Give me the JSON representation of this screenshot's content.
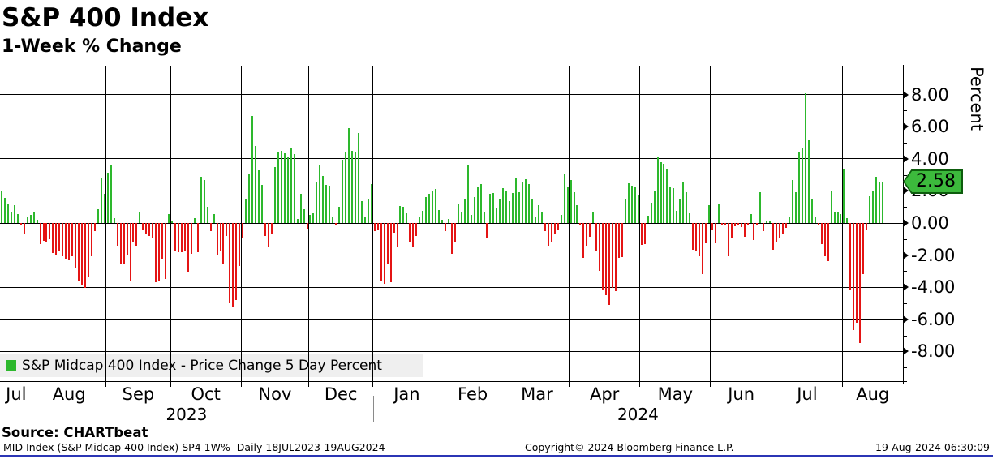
{
  "header": {
    "title": "S&P 400 Index",
    "subtitle": "1-Week % Change"
  },
  "chart_data": {
    "type": "bar",
    "title": "S&P 400 Index",
    "subtitle": "1-Week % Change",
    "ylabel": "Percent",
    "xlabel": "",
    "ylim": [
      -9.8,
      9.75
    ],
    "grid": true,
    "y_major_ticks": [
      8,
      6,
      4,
      2,
      0,
      -2,
      -4,
      -6,
      -8
    ],
    "y_tick_labels": [
      "8.00",
      "6.00",
      "4.00",
      "2.00",
      "0.00",
      "-2.00",
      "-4.00",
      "-6.00",
      "-8.00"
    ],
    "last_value_label": "2.58",
    "legend_position": "bottom-left",
    "series_name": "S&P Midcap 400 Index - Price Change 5 Day Percent",
    "months": [
      {
        "label": "Jul",
        "year": "2023",
        "days": 10,
        "values": [
          2.0,
          1.56,
          1.14,
          0.64,
          1.09,
          0.55,
          -0.15,
          -0.7,
          0.39,
          0.5
        ]
      },
      {
        "label": "Aug",
        "year": "2023",
        "days": 23,
        "values": [
          0.72,
          0.2,
          -1.3,
          -1.13,
          -1.2,
          -1.0,
          -1.88,
          -1.96,
          -1.7,
          -2.08,
          -2.2,
          -2.3,
          -2.08,
          -2.8,
          -3.64,
          -3.86,
          -4.06,
          -3.4,
          -2.08,
          -0.5,
          0.84,
          2.8,
          1.81
        ]
      },
      {
        "label": "Sep",
        "year": "2023",
        "days": 20,
        "values": [
          3.14,
          3.6,
          0.3,
          -1.4,
          -2.6,
          -2.5,
          -2.0,
          -3.6,
          -1.2,
          -1.4,
          0.7,
          -0.4,
          -0.7,
          -0.8,
          -0.9,
          -3.7,
          -3.6,
          -2.2,
          -3.5,
          0.55
        ]
      },
      {
        "label": "Oct",
        "year": "2023",
        "days": 22,
        "values": [
          0.15,
          -1.7,
          -1.8,
          -1.8,
          -1.7,
          -3.1,
          -1.9,
          0.3,
          -1.8,
          2.9,
          2.7,
          1.0,
          -0.5,
          0.55,
          -2.0,
          -1.7,
          -2.5,
          -0.8,
          -5.0,
          -5.2,
          -4.8,
          -2.7
        ]
      },
      {
        "label": "Nov",
        "year": "2023",
        "days": 21,
        "values": [
          -0.95,
          1.54,
          3.1,
          6.68,
          4.8,
          3.3,
          2.35,
          -0.8,
          -1.5,
          -0.65,
          3.5,
          4.45,
          4.5,
          4.35,
          4.1,
          4.7,
          4.3,
          0.25,
          1.8,
          0.87,
          -0.37
        ]
      },
      {
        "label": "Dec",
        "year": "2023",
        "days": 20,
        "values": [
          0.5,
          0.62,
          2.6,
          3.6,
          2.94,
          2.35,
          2.3,
          0.37,
          -0.13,
          1.0,
          3.95,
          4.37,
          5.9,
          4.5,
          4.37,
          5.6,
          1.34,
          0.33,
          1.54,
          2.43
        ]
      },
      {
        "label": "Jan",
        "year": "2024",
        "days": 21,
        "values": [
          -0.5,
          -0.45,
          -3.6,
          -3.8,
          -2.5,
          -3.7,
          -0.6,
          -1.5,
          1.05,
          1.0,
          0.6,
          -1.2,
          -1.5,
          -0.8,
          0.4,
          0.75,
          1.6,
          1.8,
          2.0,
          2.1,
          0.8
        ]
      },
      {
        "label": "Feb",
        "year": "2024",
        "days": 20,
        "values": [
          0.2,
          -0.5,
          0.25,
          -1.93,
          -1.17,
          1.17,
          0.7,
          1.54,
          3.66,
          0.5,
          1.6,
          2.27,
          2.43,
          0.67,
          -0.97,
          1.81,
          1.88,
          0.92,
          1.5,
          2.18
        ]
      },
      {
        "label": "Mar",
        "year": "2024",
        "days": 20,
        "values": [
          2.0,
          1.34,
          1.85,
          2.77,
          1.93,
          2.6,
          2.72,
          2.43,
          1.54,
          0.33,
          1.1,
          0.67,
          -0.5,
          -1.43,
          -1.17,
          -0.67,
          -0.42,
          0.5,
          3.1,
          2.27
        ]
      },
      {
        "label": "Apr",
        "year": "2024",
        "days": 22,
        "values": [
          2.68,
          1.93,
          1.1,
          -0.17,
          -2.18,
          -1.43,
          -0.84,
          0.7,
          -1.7,
          -3.0,
          -4.16,
          -4.5,
          -5.12,
          -4.06,
          -4.23,
          -2.18,
          -2.1,
          1.54,
          2.48,
          2.3,
          2.2,
          1.76
        ]
      },
      {
        "label": "May",
        "year": "2024",
        "days": 22,
        "values": [
          -1.34,
          -1.3,
          0.47,
          1.26,
          2.0,
          4.1,
          3.78,
          3.7,
          3.36,
          2.27,
          2.18,
          0.75,
          1.54,
          2.52,
          1.93,
          0.6,
          -1.65,
          -1.7,
          -2.05,
          -3.16,
          -1.26,
          1.1
        ]
      },
      {
        "label": "Jun",
        "year": "2024",
        "days": 19,
        "values": [
          -0.42,
          -1.26,
          1.17,
          -0.17,
          -0.13,
          -2.05,
          -0.97,
          -0.2,
          -0.1,
          -0.25,
          -0.87,
          -0.17,
          0.54,
          -1.04,
          -0.13,
          1.93,
          -0.5,
          0.08,
          0.13
        ]
      },
      {
        "label": "Jul",
        "year": "2024",
        "days": 22,
        "values": [
          -1.68,
          -1.17,
          -0.97,
          -0.7,
          -0.3,
          0.37,
          2.68,
          1.93,
          4.45,
          4.67,
          8.09,
          5.17,
          1.5,
          0.33,
          -0.17,
          -1.3,
          -2.05,
          -2.38,
          2.0,
          0.67,
          0.7,
          0.54
        ]
      },
      {
        "label": "Aug",
        "year": "2024",
        "days": 13,
        "values": [
          3.4,
          0.3,
          -4.16,
          -6.68,
          -6.2,
          -7.47,
          -3.16,
          -0.42,
          1.68,
          2.0,
          2.89,
          2.55,
          2.58
        ]
      }
    ],
    "year_labels": [
      "2023",
      "2024"
    ]
  },
  "legend": {
    "label": "S&P Midcap 400 Index - Price Change 5 Day Percent"
  },
  "badge": {
    "value": "2.58"
  },
  "axis": {
    "percent_label": "Percent"
  },
  "footer": {
    "source": "Source: CHARTbeat",
    "left": "MID Index (S&P Midcap 400 Index) SP4 1W%  Daily 18JUL2023-19AUG2024",
    "center": "Copyright© 2024 Bloomberg Finance L.P.",
    "right": "19-Aug-2024 06:30:09"
  },
  "colors": {
    "positive": "#2db82d",
    "negative": "#e41414",
    "badge_fill": "#3cba3c",
    "badge_border": "#0d5c0d",
    "grid": "#000000",
    "legend_bg": "#efefef",
    "bottom_rule": "#2b35b5"
  }
}
